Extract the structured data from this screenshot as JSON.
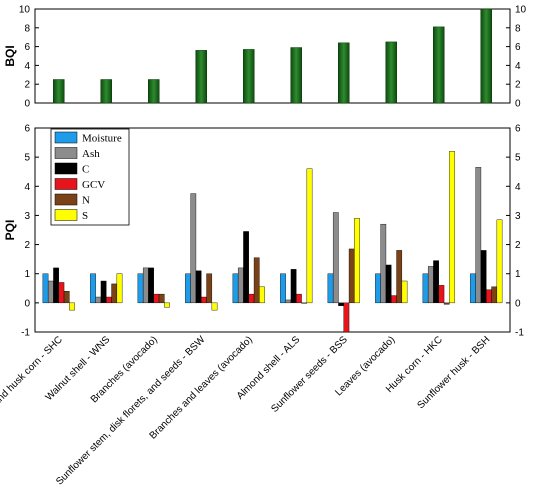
{
  "chart_data": [
    {
      "type": "bar",
      "ylabel": "BQI",
      "ylim": [
        0,
        10
      ],
      "yticks": [
        0,
        2,
        4,
        6,
        8,
        10
      ],
      "categories": [
        "Stalk and husk corn - SHC",
        "Walnut shell  - WNS",
        "Branches (avocado)",
        "Sunflower stem, disk florets, and seeds - BSW",
        "Branches and leaves (avocado)",
        "Almond shell - ALS",
        "Sunflower seeds - BSS",
        "Leaves (avocado)",
        "Husk corn - HKC",
        "Sunflower husk - BSH"
      ],
      "values": [
        2.5,
        2.5,
        2.5,
        5.6,
        5.7,
        5.9,
        6.4,
        6.5,
        8.1,
        10.0
      ],
      "bar_color": "#2e8b2e",
      "grid": false,
      "right_axis": true
    },
    {
      "type": "bar",
      "ylabel": "PQI",
      "ylim": [
        -1,
        6
      ],
      "yticks": [
        -1,
        0,
        1,
        2,
        3,
        4,
        5,
        6
      ],
      "legend_position": "top-left",
      "grid": false,
      "right_axis": true,
      "categories": [
        "Stalk and husk corn - SHC",
        "Walnut shell  - WNS",
        "Branches (avocado)",
        "Sunflower stem, disk florets, and seeds - BSW",
        "Branches and leaves (avocado)",
        "Almond shell - ALS",
        "Sunflower seeds - BSS",
        "Leaves (avocado)",
        "Husk corn - HKC",
        "Sunflower husk - BSH"
      ],
      "series": [
        {
          "name": "Moisture",
          "color": "#1e9be9",
          "values": [
            1.0,
            1.0,
            1.0,
            1.0,
            1.0,
            1.0,
            1.0,
            1.0,
            1.0,
            1.0
          ]
        },
        {
          "name": "Ash",
          "color": "#8c8c8c",
          "values": [
            0.75,
            0.2,
            1.2,
            3.75,
            1.2,
            0.1,
            3.1,
            2.7,
            1.25,
            4.65
          ]
        },
        {
          "name": "C",
          "color": "#000000",
          "values": [
            1.2,
            0.75,
            1.2,
            1.1,
            2.45,
            1.15,
            -0.1,
            1.3,
            1.45,
            1.8
          ]
        },
        {
          "name": "GCV",
          "color": "#e8141b",
          "values": [
            0.7,
            0.2,
            0.3,
            0.2,
            0.3,
            0.3,
            -1.0,
            0.25,
            0.6,
            0.45
          ]
        },
        {
          "name": "N",
          "color": "#7a4216",
          "values": [
            0.4,
            0.65,
            0.3,
            1.0,
            1.55,
            0.0,
            1.85,
            1.8,
            -0.05,
            0.55
          ]
        },
        {
          "name": "S",
          "color": "#ffff00",
          "values": [
            -0.25,
            1.0,
            -0.15,
            -0.25,
            0.55,
            4.6,
            2.9,
            0.75,
            5.2,
            2.85
          ]
        }
      ]
    }
  ]
}
